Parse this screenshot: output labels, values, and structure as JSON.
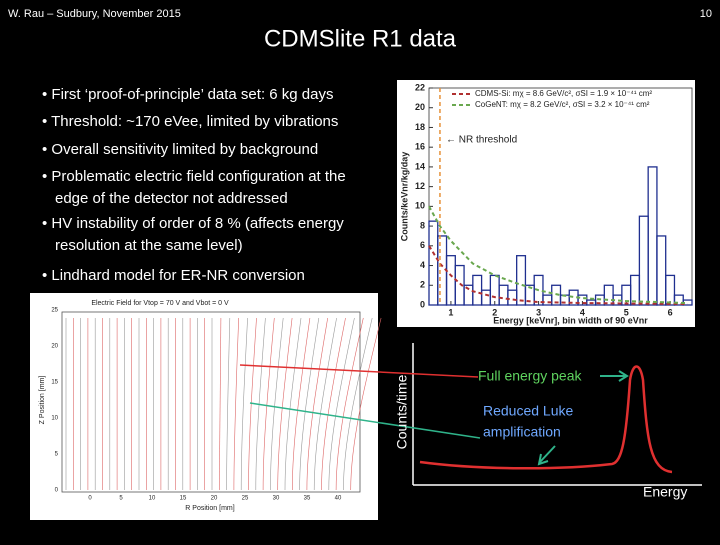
{
  "header": {
    "left": "W. Rau – Sudbury, November 2015",
    "page": "10"
  },
  "title": "CDMSlite R1 data",
  "bullets": [
    [
      "• First ‘proof-of-principle’ data set: 6 kg days"
    ],
    [
      "• Threshold: ~170 eVee, limited by vibrations"
    ],
    [
      "• Overall sensitivity limited by background"
    ],
    [
      "• Problematic electric field configuration at the",
      "edge of the detector not addressed"
    ],
    [
      "• HV instability of order of 8 % (affects energy",
      "resolution at the same level)"
    ],
    [
      "• Lindhard model for ER-NR conversion"
    ]
  ],
  "chart_data": {
    "type": "histogram",
    "xlabel": "Energy [keVnr], bin width of 90 eVnr",
    "ylabel": "Counts/keVnr/kg/day",
    "bins": [
      0.5,
      0.7,
      0.9,
      1.1,
      1.3,
      1.5,
      1.7,
      1.9,
      2.1,
      2.3,
      2.5,
      2.7,
      2.9,
      3.1,
      3.3,
      3.5,
      3.7,
      3.9,
      4.1,
      4.3,
      4.5,
      4.7,
      4.9,
      5.1,
      5.3,
      5.5,
      5.7,
      5.9,
      6.1,
      6.3,
      6.5
    ],
    "values": [
      8.5,
      7,
      5,
      4,
      2,
      3,
      1.5,
      3,
      2,
      1.5,
      5,
      2,
      3,
      1,
      2,
      1,
      1.5,
      1,
      0.5,
      1,
      2,
      1,
      2,
      3,
      9,
      14,
      7,
      3,
      1,
      0.5
    ],
    "color": "#1f2f8f",
    "series": [
      {
        "name": "CDMS-Si: mχ = 8.6 GeV/c², σSI = 1.9 × 10⁻⁴¹ cm²",
        "color": "#b03030",
        "x": [
          0.5,
          0.75,
          1,
          1.25,
          1.5,
          2,
          2.5,
          3,
          4,
          5,
          6.4
        ],
        "values": [
          6,
          4.2,
          3,
          2,
          1.4,
          0.8,
          0.5,
          0.3,
          0.2,
          0.15,
          0.1
        ]
      },
      {
        "name": "CoGeNT: mχ = 8.2 GeV/c², σSI = 3.2 × 10⁻⁴¹ cm²",
        "color": "#6aa84f",
        "x": [
          0.5,
          0.75,
          1,
          1.5,
          2,
          2.5,
          3,
          3.5,
          4,
          5,
          6.4
        ],
        "values": [
          10,
          8,
          6.5,
          4.2,
          3,
          2.2,
          1.5,
          1,
          0.7,
          0.4,
          0.2
        ]
      }
    ],
    "threshold": 0.75,
    "threshold_label": "← NR threshold",
    "xlim": [
      0.5,
      6.5
    ],
    "ylim": [
      0,
      22
    ],
    "xticks": [
      1,
      2,
      3,
      4,
      5,
      6
    ],
    "yticks": [
      0,
      2,
      4,
      6,
      8,
      10,
      12,
      14,
      16,
      18,
      20,
      22
    ]
  },
  "field_plot": {
    "title": "Electric Field for Vtop = 70 V and Vbot = 0 V",
    "xlabel": "R Position [mm]",
    "ylabel": "Z Position [mm]",
    "xticks": [
      "0",
      "5",
      "10",
      "15",
      "20",
      "25",
      "30",
      "35",
      "40"
    ],
    "yticks": [
      "0",
      "5",
      "10",
      "15",
      "20",
      "25"
    ]
  },
  "sketch": {
    "ylabel": "Counts/time",
    "xlabel": "Energy",
    "peak_label": "Full energy peak",
    "luke_label": [
      "Reduced Luke",
      "amplification"
    ]
  }
}
